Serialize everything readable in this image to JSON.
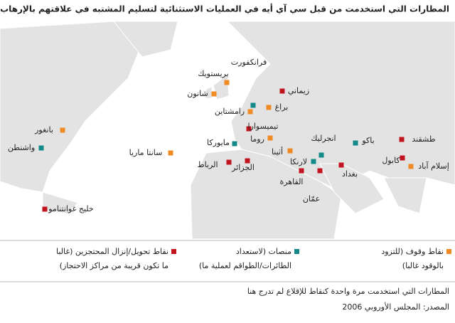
{
  "header": {
    "title": "المطارات التي استخدمت من قبل سي آي أيه في العمليات الاستثنائية لتسليم المشتبه في علاقتهم بالإرهاب"
  },
  "groups": [
    {
      "color": "#f08a24",
      "legend": [
        "نقاط وقوف (للتزود",
        "بالوقود غالبا)"
      ],
      "places": [
        "بريستويك",
        "شانون",
        "بانغور",
        "سانتا ماريا",
        "رامشتاين",
        "براغ",
        "روما",
        "أثينا",
        "إسلام آباد"
      ]
    },
    {
      "color": "#138a8a",
      "legend": [
        "منصات (لاستعداد",
        "الطائرات/الطواقم لعملية ما)"
      ],
      "places": [
        "فرانكفورت",
        "واشنطن",
        "مايوركا",
        "انجرليك",
        "لارنكا",
        "باكو"
      ]
    },
    {
      "color": "#c0151f",
      "legend": [
        "نقاط تحويل/إنزال المحتجزين (غالبا",
        "ما تكون قريبة من مراكز الاحتجاز)"
      ],
      "places": [
        "زيماني",
        "تيميسوارا",
        "الرباط",
        "الجزائر",
        "القاهرة",
        "عمّان",
        "بغداد",
        "كابول",
        "طشقند",
        "خليج غوانتنامو"
      ]
    }
  ],
  "footer": {
    "note": "المطارات التي استخدمت مرة واحدة كنقاط للإقلاع لم تدرج هنا",
    "source": "المصدر: المجلس الأوروبي 2006"
  }
}
